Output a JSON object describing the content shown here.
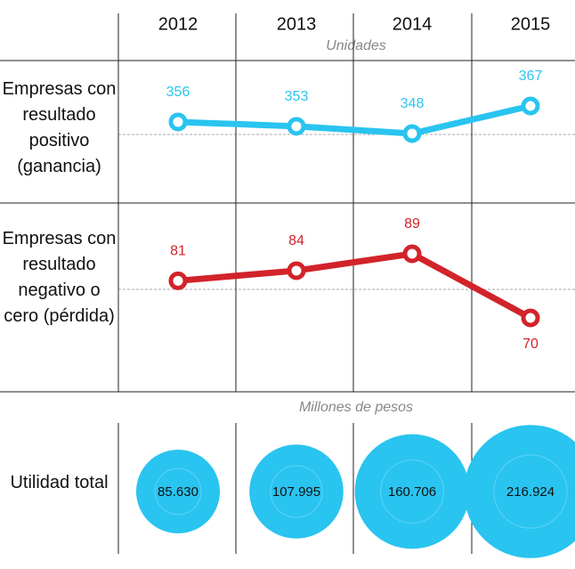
{
  "chart_data": {
    "type": "line",
    "categories": [
      "2012",
      "2013",
      "2014",
      "2015"
    ],
    "subtitle": "Unidades",
    "series": [
      {
        "name": "Empresas con resultado positivo (ganancia)",
        "color": "#29c4f0",
        "values": [
          356,
          353,
          348,
          367
        ]
      },
      {
        "name": "Empresas con resultado negativo o cero (pérdida)",
        "color": "#d2232a",
        "values": [
          81,
          84,
          89,
          70
        ]
      }
    ],
    "bubbles": {
      "title": "Millones de pesos",
      "name": "Utilidad total",
      "color": "#29c4f0",
      "values": [
        85630,
        107995,
        160706,
        216924
      ],
      "value_labels": [
        "85.630",
        "107.995",
        "160.706",
        "216.924"
      ]
    }
  }
}
